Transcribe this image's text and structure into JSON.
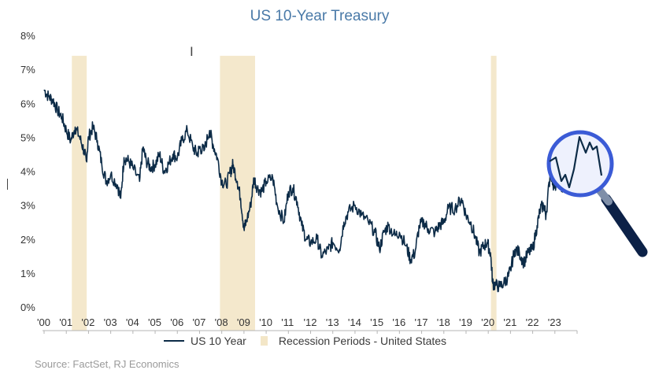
{
  "chart_data": {
    "type": "line",
    "title": "US 10-Year Treasury",
    "source": "Source: FactSet, RJ Economics",
    "y_ticks": [
      "0%",
      "1%",
      "2%",
      "3%",
      "4%",
      "5%",
      "6%",
      "7%",
      "8%"
    ],
    "ylim": [
      0,
      8
    ],
    "xlim": [
      2000.0,
      2024.0
    ],
    "x_tick_labels": [
      "'00",
      "'01",
      "'02",
      "'03",
      "'04",
      "'05",
      "'06",
      "'07",
      "'08",
      "'09",
      "'10",
      "'11",
      "'12",
      "'13",
      "'14",
      "'15",
      "'16",
      "'17",
      "'18",
      "'19",
      "'20",
      "'21",
      "'22",
      "'23"
    ],
    "legend": {
      "line_label": "US 10 Year",
      "recession_label": "Recession Periods - United States",
      "placement": "bottom"
    },
    "recessions": [
      [
        2001.25,
        2001.92
      ],
      [
        2007.92,
        2009.5
      ],
      [
        2020.12,
        2020.37
      ]
    ],
    "series": [
      {
        "name": "US 10 Year",
        "color": "#0c2b47",
        "points": [
          [
            2000.0,
            6.4
          ],
          [
            2000.2,
            6.2
          ],
          [
            2000.4,
            6.1
          ],
          [
            2000.6,
            5.8
          ],
          [
            2000.8,
            5.6
          ],
          [
            2001.0,
            5.2
          ],
          [
            2001.2,
            4.9
          ],
          [
            2001.4,
            5.3
          ],
          [
            2001.6,
            5.0
          ],
          [
            2001.8,
            4.6
          ],
          [
            2001.9,
            4.3
          ],
          [
            2002.0,
            5.0
          ],
          [
            2002.2,
            5.3
          ],
          [
            2002.4,
            4.9
          ],
          [
            2002.6,
            4.2
          ],
          [
            2002.8,
            3.7
          ],
          [
            2003.0,
            3.9
          ],
          [
            2003.3,
            3.6
          ],
          [
            2003.45,
            3.2
          ],
          [
            2003.6,
            4.4
          ],
          [
            2003.8,
            4.3
          ],
          [
            2004.0,
            4.1
          ],
          [
            2004.3,
            3.7
          ],
          [
            2004.45,
            4.7
          ],
          [
            2004.6,
            4.3
          ],
          [
            2004.8,
            4.1
          ],
          [
            2005.0,
            4.2
          ],
          [
            2005.2,
            4.5
          ],
          [
            2005.4,
            4.0
          ],
          [
            2005.6,
            4.2
          ],
          [
            2005.8,
            4.5
          ],
          [
            2006.0,
            4.4
          ],
          [
            2006.2,
            4.9
          ],
          [
            2006.45,
            5.2
          ],
          [
            2006.7,
            4.7
          ],
          [
            2006.9,
            4.5
          ],
          [
            2007.0,
            4.7
          ],
          [
            2007.2,
            4.6
          ],
          [
            2007.45,
            5.2
          ],
          [
            2007.6,
            4.8
          ],
          [
            2007.8,
            4.4
          ],
          [
            2008.0,
            3.7
          ],
          [
            2008.2,
            3.6
          ],
          [
            2008.4,
            4.0
          ],
          [
            2008.5,
            4.2
          ],
          [
            2008.7,
            3.7
          ],
          [
            2008.85,
            3.2
          ],
          [
            2009.0,
            2.3
          ],
          [
            2009.1,
            2.5
          ],
          [
            2009.3,
            3.0
          ],
          [
            2009.45,
            3.8
          ],
          [
            2009.6,
            3.5
          ],
          [
            2009.8,
            3.4
          ],
          [
            2010.0,
            3.7
          ],
          [
            2010.3,
            3.8
          ],
          [
            2010.5,
            3.0
          ],
          [
            2010.8,
            2.5
          ],
          [
            2011.0,
            3.4
          ],
          [
            2011.2,
            3.5
          ],
          [
            2011.4,
            3.1
          ],
          [
            2011.6,
            2.4
          ],
          [
            2011.8,
            2.0
          ],
          [
            2012.0,
            1.9
          ],
          [
            2012.3,
            2.0
          ],
          [
            2012.5,
            1.5
          ],
          [
            2012.8,
            1.7
          ],
          [
            2013.0,
            1.9
          ],
          [
            2013.3,
            1.7
          ],
          [
            2013.5,
            2.5
          ],
          [
            2013.7,
            2.8
          ],
          [
            2014.0,
            3.0
          ],
          [
            2014.3,
            2.7
          ],
          [
            2014.6,
            2.5
          ],
          [
            2014.9,
            2.2
          ],
          [
            2015.1,
            1.7
          ],
          [
            2015.3,
            2.2
          ],
          [
            2015.5,
            2.4
          ],
          [
            2015.8,
            2.1
          ],
          [
            2016.0,
            2.2
          ],
          [
            2016.3,
            1.8
          ],
          [
            2016.5,
            1.4
          ],
          [
            2016.7,
            1.6
          ],
          [
            2016.9,
            2.4
          ],
          [
            2017.1,
            2.5
          ],
          [
            2017.3,
            2.3
          ],
          [
            2017.6,
            2.2
          ],
          [
            2017.8,
            2.4
          ],
          [
            2018.0,
            2.5
          ],
          [
            2018.2,
            2.9
          ],
          [
            2018.5,
            2.9
          ],
          [
            2018.8,
            3.2
          ],
          [
            2019.0,
            2.7
          ],
          [
            2019.2,
            2.5
          ],
          [
            2019.4,
            2.1
          ],
          [
            2019.6,
            1.6
          ],
          [
            2019.8,
            1.8
          ],
          [
            2019.95,
            1.9
          ],
          [
            2020.1,
            1.6
          ],
          [
            2020.2,
            0.7
          ],
          [
            2020.3,
            0.65
          ],
          [
            2020.5,
            0.6
          ],
          [
            2020.7,
            0.7
          ],
          [
            2020.9,
            0.9
          ],
          [
            2021.0,
            1.1
          ],
          [
            2021.2,
            1.7
          ],
          [
            2021.4,
            1.6
          ],
          [
            2021.6,
            1.3
          ],
          [
            2021.8,
            1.6
          ],
          [
            2022.0,
            1.7
          ],
          [
            2022.2,
            2.4
          ],
          [
            2022.35,
            2.9
          ],
          [
            2022.5,
            3.0
          ],
          [
            2022.6,
            2.7
          ],
          [
            2022.8,
            4.0
          ],
          [
            2022.9,
            3.7
          ],
          [
            2023.0,
            3.5
          ],
          [
            2023.15,
            3.9
          ],
          [
            2023.3,
            3.4
          ],
          [
            2023.5,
            3.8
          ],
          [
            2023.6,
            3.7
          ],
          [
            2023.7,
            4.3
          ],
          [
            2023.8,
            4.9
          ],
          [
            2023.9,
            4.5
          ],
          [
            2024.0,
            3.9
          ]
        ]
      }
    ],
    "magnifier": {
      "icon": "magnifying-glass-icon",
      "rim_color": "#3b5bd6",
      "handle_color": "#0c2147"
    }
  }
}
